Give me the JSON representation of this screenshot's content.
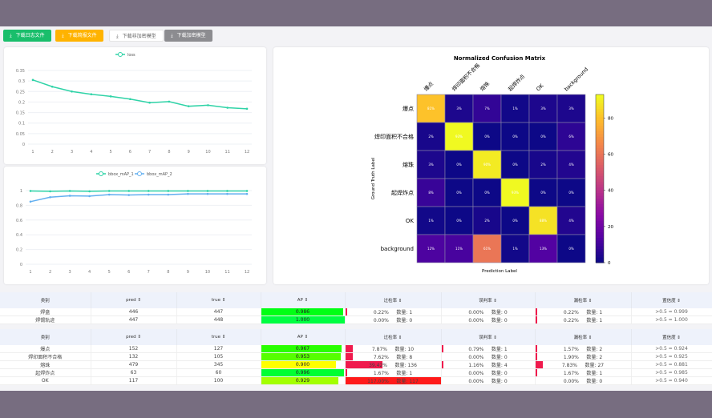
{
  "toolbar": {
    "buttons": [
      {
        "label": "下载日志文件",
        "bg": "#19be6b",
        "color": "#fff"
      },
      {
        "label": "下载简报文件",
        "bg": "#ffb300",
        "color": "#fff"
      },
      {
        "label": "下载非加密模型",
        "bg": "#ffffff",
        "color": "#666"
      },
      {
        "label": "下载加密模型",
        "bg": "#8c8c90",
        "color": "#fff"
      }
    ],
    "icon": "download-icon"
  },
  "loss_chart": {
    "type": "line",
    "legend": [
      "loss"
    ],
    "x": [
      1,
      2,
      3,
      4,
      5,
      6,
      7,
      8,
      9,
      10,
      11,
      12
    ],
    "series": [
      {
        "name": "loss",
        "color": "#2fd3a7",
        "values": [
          0.305,
          0.273,
          0.25,
          0.237,
          0.227,
          0.214,
          0.197,
          0.202,
          0.18,
          0.185,
          0.173,
          0.168
        ]
      }
    ],
    "yticks": [
      "0",
      "0.05",
      "0.1",
      "0.15",
      "0.2",
      "0.25",
      "0.3",
      "0.35"
    ],
    "ylim": [
      0,
      0.35
    ]
  },
  "map_chart": {
    "type": "line",
    "legend": [
      "bbox_mAP_1",
      "bbox_mAP_2"
    ],
    "x": [
      1,
      2,
      3,
      4,
      5,
      6,
      7,
      8,
      9,
      10,
      11,
      12
    ],
    "series": [
      {
        "name": "bbox_mAP_1",
        "color": "#2fd3a7",
        "values": [
          0.995,
          0.99,
          0.995,
          0.99,
          0.995,
          0.995,
          0.995,
          0.995,
          0.995,
          0.995,
          0.995,
          0.995
        ]
      },
      {
        "name": "bbox_mAP_2",
        "color": "#62aff0",
        "values": [
          0.85,
          0.91,
          0.93,
          0.925,
          0.945,
          0.94,
          0.945,
          0.945,
          0.955,
          0.955,
          0.955,
          0.955
        ]
      }
    ],
    "yticks": [
      "0",
      "0.2",
      "0.4",
      "0.6",
      "0.8",
      "1"
    ],
    "ylim": [
      0,
      1
    ]
  },
  "confusion": {
    "type": "heatmap",
    "title": "Normalized Confusion Matrix",
    "xlabel": "Prediction Label",
    "ylabel": "Ground Truth Label",
    "labels": [
      "爆点",
      "焊印面积不合格",
      "熔珠",
      "起焊炸点",
      "OK",
      "background"
    ],
    "values": [
      [
        81,
        3,
        7,
        1,
        3,
        3
      ],
      [
        2,
        93,
        0,
        0,
        0,
        6
      ],
      [
        3,
        0,
        90,
        0,
        2,
        4
      ],
      [
        8,
        0,
        0,
        93,
        0,
        0
      ],
      [
        1,
        0,
        2,
        0,
        88,
        4
      ],
      [
        12,
        11,
        61,
        1,
        13,
        0
      ]
    ],
    "colorbar_ticks": [
      "0",
      "20",
      "40",
      "60",
      "80"
    ],
    "colormap": "plasma"
  },
  "table_headers": [
    "类别",
    "pred ⇕",
    "true ⇕",
    "AP ⇕",
    "过检率 ⇕",
    "误判率 ⇕",
    "漏检率 ⇕",
    "置信度 ⇕"
  ],
  "table1": [
    {
      "cls": "焊盘",
      "pred": "446",
      "true": "447",
      "ap": "0.986",
      "over": "0.22%",
      "over_n": "数量: 1",
      "mis": "0.00%",
      "mis_n": "数量: 0",
      "miss": "0.22%",
      "miss_n": "数量: 1",
      "conf": ">0.5 = 0.999"
    },
    {
      "cls": "焊锡轨迹",
      "pred": "447",
      "true": "448",
      "ap": "1.000",
      "over": "0.00%",
      "over_n": "数量: 0",
      "mis": "0.00%",
      "mis_n": "数量: 0",
      "miss": "0.22%",
      "miss_n": "数量: 1",
      "conf": ">0.5 = 1.000"
    }
  ],
  "table2": [
    {
      "cls": "爆点",
      "pred": "152",
      "true": "127",
      "ap": "0.967",
      "over": "7.87%",
      "over_n": "数量: 10",
      "mis": "0.79%",
      "mis_n": "数量: 1",
      "miss": "1.57%",
      "miss_n": "数量: 2",
      "conf": ">0.5 = 0.924"
    },
    {
      "cls": "焊印面积不合格",
      "pred": "132",
      "true": "105",
      "ap": "0.953",
      "over": "7.62%",
      "over_n": "数量: 8",
      "mis": "0.00%",
      "mis_n": "数量: 0",
      "miss": "1.90%",
      "miss_n": "数量: 2",
      "conf": ">0.5 = 0.925"
    },
    {
      "cls": "熔珠",
      "pred": "479",
      "true": "345",
      "ap": "0.900",
      "over": "39.42%",
      "over_n": "数量: 136",
      "mis": "1.16%",
      "mis_n": "数量: 4",
      "miss": "7.83%",
      "miss_n": "数量: 27",
      "conf": ">0.5 = 0.881"
    },
    {
      "cls": "起焊炸点",
      "pred": "63",
      "true": "60",
      "ap": "0.996",
      "over": "1.67%",
      "over_n": "数量: 1",
      "mis": "0.00%",
      "mis_n": "数量: 0",
      "miss": "1.67%",
      "miss_n": "数量: 1",
      "conf": ">0.5 = 0.985"
    },
    {
      "cls": "OK",
      "pred": "117",
      "true": "100",
      "ap": "0.929",
      "over": "117.00%",
      "over_n": "数量: 117",
      "mis": "0.00%",
      "mis_n": "数量: 0",
      "miss": "0.00%",
      "miss_n": "数量: 0",
      "conf": ">0.5 = 0.940"
    }
  ]
}
